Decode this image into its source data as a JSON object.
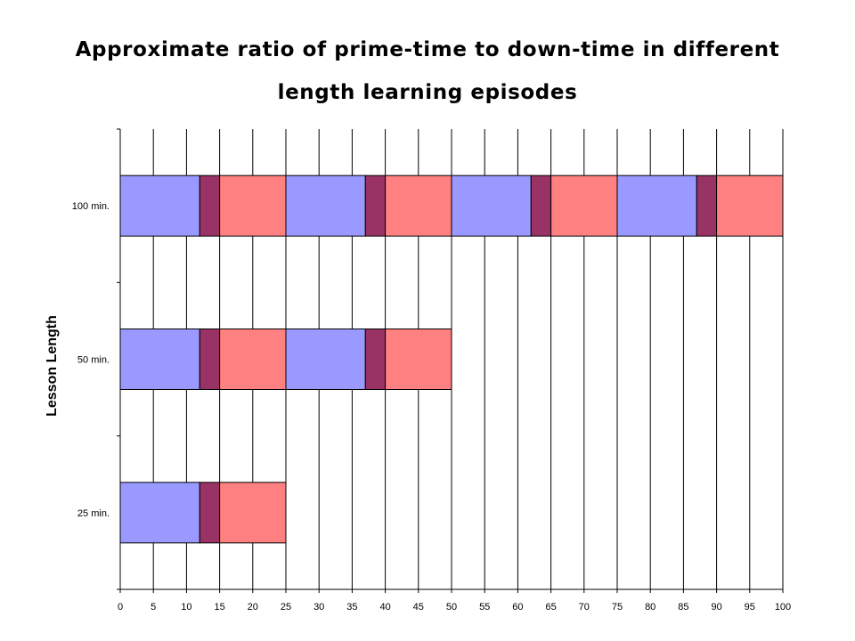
{
  "chart_data": {
    "type": "bar",
    "orientation": "horizontal",
    "stacked": true,
    "title_line1": "Approximate ratio of prime-time to down-time in different",
    "title_line2": "length learning episodes",
    "xlabel": "",
    "ylabel": "Lesson Length",
    "xlim": [
      0,
      100
    ],
    "x_ticks": [
      "0",
      "5",
      "10",
      "15",
      "20",
      "25",
      "30",
      "35",
      "40",
      "45",
      "50",
      "55",
      "60",
      "65",
      "70",
      "75",
      "80",
      "85",
      "90",
      "95",
      "100"
    ],
    "grid": "vertical",
    "categories": [
      "100 min.",
      "50 min.",
      "25 min."
    ],
    "segment_colors": [
      "#9999ff",
      "#993366",
      "#ff8080"
    ],
    "rows": [
      {
        "label": "100 min.",
        "segments": [
          12,
          3,
          10,
          12,
          3,
          10,
          12,
          3,
          10,
          12,
          3,
          10
        ]
      },
      {
        "label": "50 min.",
        "segments": [
          12,
          3,
          10,
          12,
          3,
          10
        ]
      },
      {
        "label": "25 min.",
        "segments": [
          12,
          3,
          10
        ]
      }
    ]
  }
}
